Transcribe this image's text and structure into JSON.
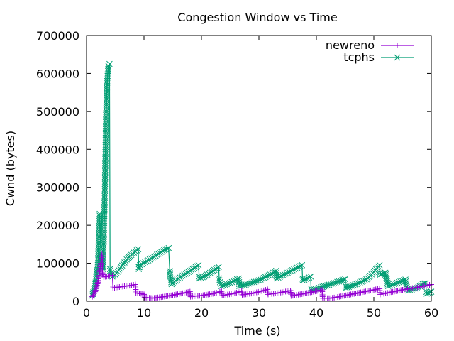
{
  "chart_data": {
    "type": "line",
    "title": "Congestion Window vs Time",
    "xlabel": "Time (s)",
    "ylabel": "Cwnd (bytes)",
    "xlim": [
      0,
      60
    ],
    "ylim": [
      0,
      700000
    ],
    "xticks": [
      0,
      10,
      20,
      30,
      40,
      50,
      60
    ],
    "yticks": [
      0,
      100000,
      200000,
      300000,
      400000,
      500000,
      600000,
      700000
    ],
    "xtick_labels": [
      "0",
      "10",
      "20",
      "30",
      "40",
      "50",
      "60"
    ],
    "ytick_labels": [
      "0",
      "100000",
      "200000",
      "300000",
      "400000",
      "500000",
      "600000",
      "700000"
    ],
    "grid": false,
    "legend_position": "top-right",
    "series": [
      {
        "name": "newreno",
        "color": "#9400d3",
        "marker": "plus",
        "points": [
          [
            1.0,
            12000
          ],
          [
            1.5,
            25000
          ],
          [
            2.0,
            50000
          ],
          [
            2.5,
            100000
          ],
          [
            2.7,
            125000
          ],
          [
            2.8,
            70000
          ],
          [
            3.0,
            64000
          ],
          [
            3.5,
            65000
          ],
          [
            4.0,
            67000
          ],
          [
            4.5,
            68000
          ],
          [
            4.6,
            35000
          ],
          [
            6.0,
            38000
          ],
          [
            7.5,
            41000
          ],
          [
            8.5,
            44000
          ],
          [
            8.6,
            22000
          ],
          [
            9.5,
            20000
          ],
          [
            10.0,
            18000
          ],
          [
            10.1,
            10000
          ],
          [
            11.5,
            8000
          ],
          [
            13.0,
            11000
          ],
          [
            15.0,
            16000
          ],
          [
            17.0,
            22000
          ],
          [
            18.0,
            25000
          ],
          [
            18.1,
            12000
          ],
          [
            20.0,
            15000
          ],
          [
            22.0,
            20000
          ],
          [
            23.5,
            26000
          ],
          [
            23.6,
            15000
          ],
          [
            25.5,
            20000
          ],
          [
            27.0,
            27000
          ],
          [
            27.1,
            17000
          ],
          [
            29.0,
            21000
          ],
          [
            30.5,
            27000
          ],
          [
            31.5,
            31000
          ],
          [
            31.6,
            18000
          ],
          [
            33.5,
            22000
          ],
          [
            35.5,
            28000
          ],
          [
            35.6,
            14000
          ],
          [
            37.5,
            19000
          ],
          [
            39.5,
            25000
          ],
          [
            41.0,
            30000
          ],
          [
            41.1,
            8000
          ],
          [
            42.5,
            8000
          ],
          [
            44.0,
            12000
          ],
          [
            46.0,
            18000
          ],
          [
            48.0,
            24000
          ],
          [
            50.0,
            30000
          ],
          [
            51.0,
            33000
          ],
          [
            51.1,
            18000
          ],
          [
            53.0,
            24000
          ],
          [
            55.0,
            30000
          ],
          [
            57.0,
            35000
          ],
          [
            58.5,
            39000
          ],
          [
            60.0,
            44000
          ]
        ]
      },
      {
        "name": "tcphs",
        "color": "#009e73",
        "marker": "x",
        "points": [
          [
            1.0,
            15000
          ],
          [
            1.5,
            40000
          ],
          [
            2.0,
            100000
          ],
          [
            2.3,
            230000
          ],
          [
            2.5,
            120000
          ],
          [
            2.8,
            85000
          ],
          [
            3.0,
            160000
          ],
          [
            3.2,
            300000
          ],
          [
            3.4,
            490000
          ],
          [
            3.6,
            580000
          ],
          [
            3.8,
            620000
          ],
          [
            4.0,
            625000
          ],
          [
            4.1,
            80000
          ],
          [
            4.5,
            65000
          ],
          [
            5.0,
            70000
          ],
          [
            6.0,
            90000
          ],
          [
            7.0,
            110000
          ],
          [
            8.0,
            125000
          ],
          [
            9.0,
            137000
          ],
          [
            9.1,
            85000
          ],
          [
            9.3,
            95000
          ],
          [
            10.5,
            105000
          ],
          [
            12.0,
            120000
          ],
          [
            13.5,
            135000
          ],
          [
            14.3,
            140000
          ],
          [
            14.5,
            75000
          ],
          [
            14.8,
            45000
          ],
          [
            16.0,
            60000
          ],
          [
            17.5,
            75000
          ],
          [
            19.0,
            90000
          ],
          [
            19.5,
            95000
          ],
          [
            19.6,
            60000
          ],
          [
            20.5,
            65000
          ],
          [
            22.0,
            80000
          ],
          [
            23.0,
            90000
          ],
          [
            23.1,
            55000
          ],
          [
            23.5,
            40000
          ],
          [
            25.0,
            48000
          ],
          [
            26.5,
            60000
          ],
          [
            26.6,
            40000
          ],
          [
            28.0,
            45000
          ],
          [
            30.0,
            55000
          ],
          [
            32.0,
            70000
          ],
          [
            33.0,
            80000
          ],
          [
            33.1,
            60000
          ],
          [
            35.0,
            75000
          ],
          [
            37.5,
            95000
          ],
          [
            37.6,
            55000
          ],
          [
            38.5,
            60000
          ],
          [
            39.0,
            65000
          ],
          [
            39.1,
            28000
          ],
          [
            40.5,
            35000
          ],
          [
            42.5,
            45000
          ],
          [
            44.5,
            55000
          ],
          [
            45.0,
            58000
          ],
          [
            45.1,
            35000
          ],
          [
            47.0,
            45000
          ],
          [
            49.0,
            60000
          ],
          [
            51.0,
            95000
          ],
          [
            51.1,
            70000
          ],
          [
            52.0,
            75000
          ],
          [
            52.5,
            40000
          ],
          [
            53.5,
            45000
          ],
          [
            55.5,
            57000
          ],
          [
            55.6,
            42000
          ],
          [
            56.0,
            28000
          ],
          [
            57.5,
            35000
          ],
          [
            58.5,
            45000
          ],
          [
            59.0,
            48000
          ],
          [
            59.2,
            20000
          ],
          [
            60.0,
            25000
          ]
        ]
      }
    ]
  }
}
